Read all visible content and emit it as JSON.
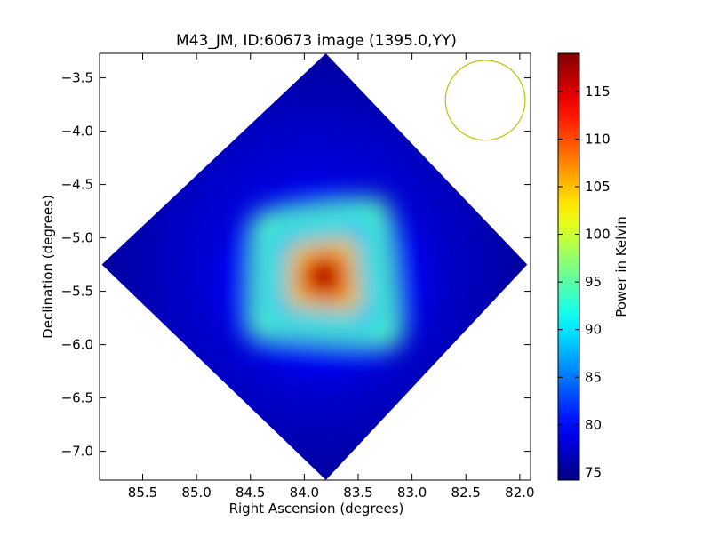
{
  "figure": {
    "title": "M43_JM, ID:60673 image (1395.0,YY)"
  },
  "chart_data": {
    "type": "heatmap",
    "title": "M43_JM, ID:60673 image (1395.0,YY)",
    "xlabel": "Right Ascension (degrees)",
    "ylabel": "Declination (degrees)",
    "xlim": [
      85.9,
      81.9
    ],
    "ylim": [
      -7.27,
      -3.27
    ],
    "x_ticks": [
      85.5,
      85.0,
      84.5,
      84.0,
      83.5,
      83.0,
      82.5,
      82.0
    ],
    "x_tick_labels": [
      "85.5",
      "85.0",
      "84.5",
      "84.0",
      "83.5",
      "83.0",
      "82.5",
      "82.0"
    ],
    "y_ticks": [
      -3.5,
      -4.0,
      -4.5,
      -5.0,
      -5.5,
      -6.0,
      -6.5,
      -7.0
    ],
    "y_tick_labels": [
      "−3.5",
      "−4.0",
      "−4.5",
      "−5.0",
      "−5.5",
      "−6.0",
      "−6.5",
      "−7.0"
    ],
    "x_axis_inverted": true,
    "colormap": "jet",
    "colorbar": {
      "label": "Power in Kelvin",
      "vmin": 74.2,
      "vmax": 119,
      "ticks": [
        75,
        80,
        85,
        90,
        95,
        100,
        105,
        110,
        115
      ],
      "tick_labels": [
        "75",
        "80",
        "85",
        "90",
        "95",
        "100",
        "105",
        "110",
        "115"
      ]
    },
    "map_footprint": {
      "shape": "diamond",
      "corners": [
        {
          "ra": 83.8,
          "dec": -3.27
        },
        {
          "ra": 85.88,
          "dec": -5.25
        },
        {
          "ra": 83.8,
          "dec": -7.27
        },
        {
          "ra": 81.93,
          "dec": -5.25
        }
      ]
    },
    "background_level": 76,
    "peak": {
      "ra": 83.82,
      "dec": -5.37,
      "value": 119
    },
    "beam_circle": {
      "ra": 82.32,
      "dec": -3.71,
      "radius_deg": 0.37,
      "color": "#bfbf00"
    }
  }
}
